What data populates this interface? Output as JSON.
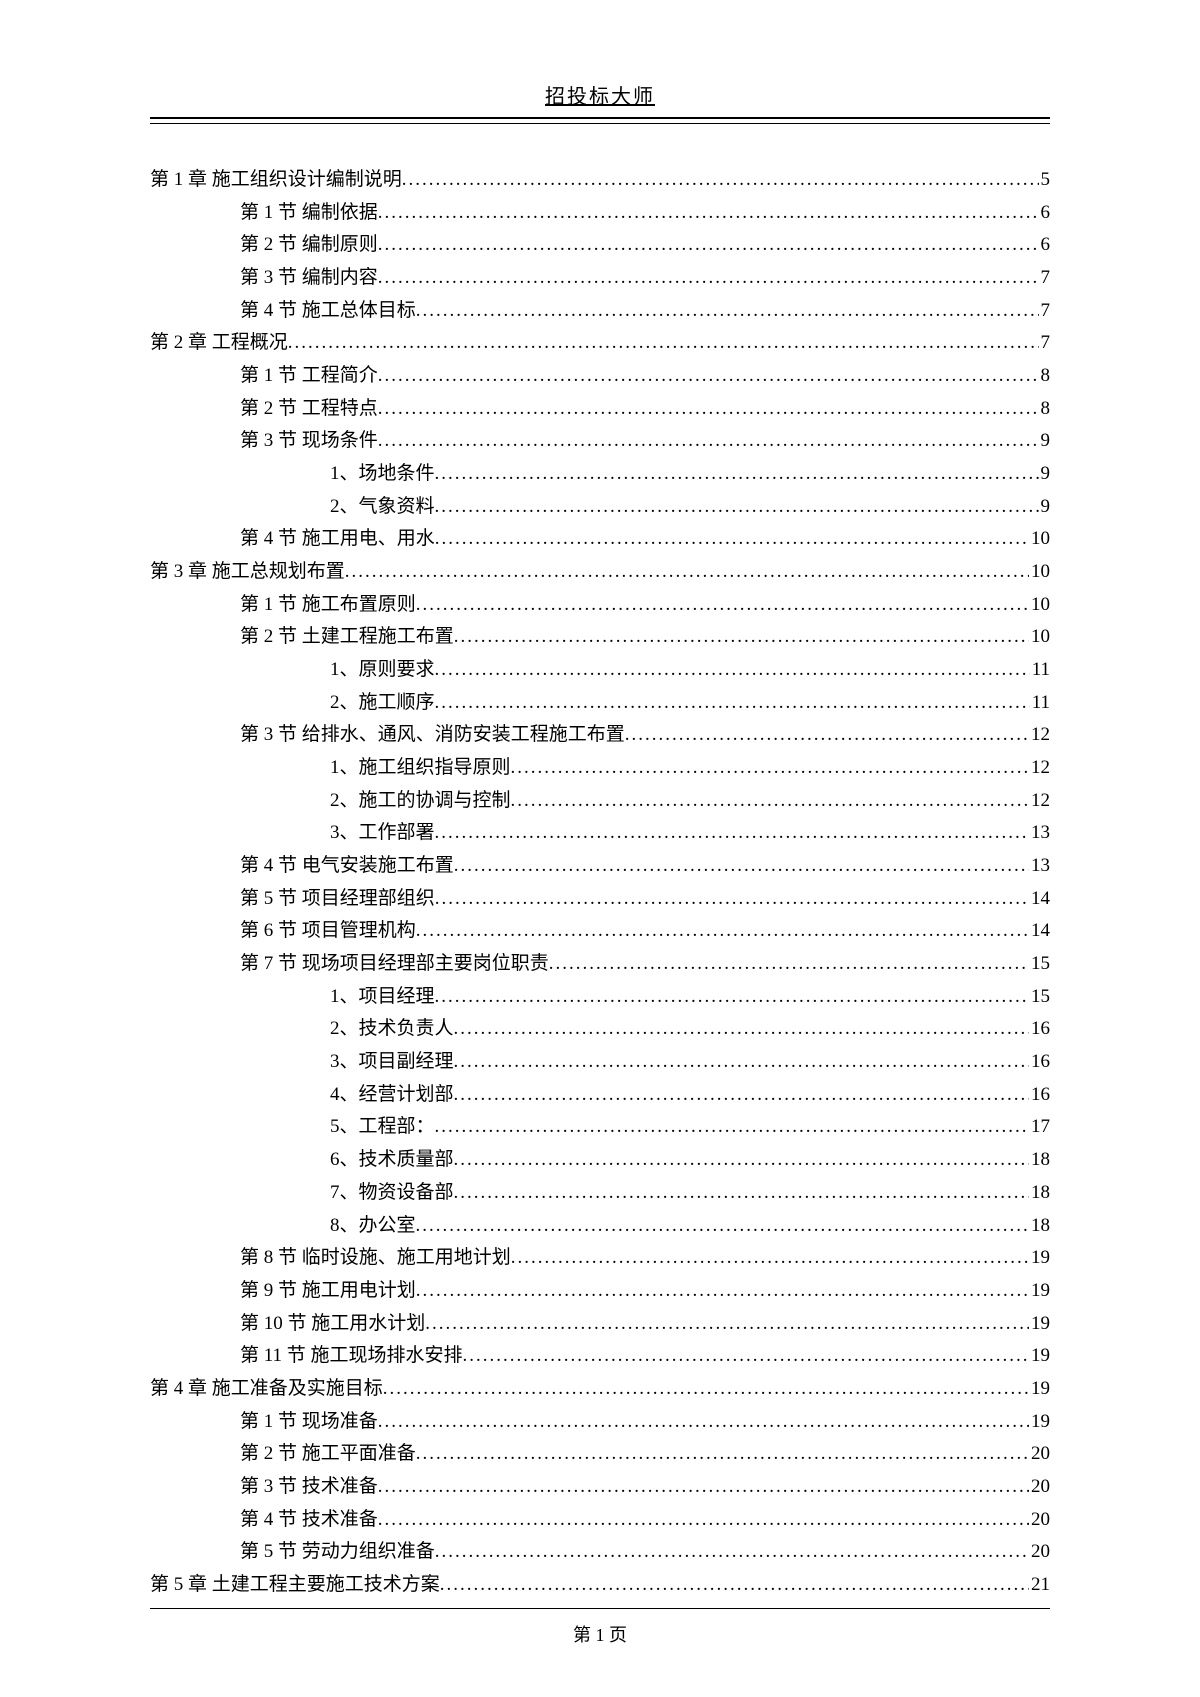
{
  "header": {
    "title": "招投标大师"
  },
  "footer": {
    "label": "第 1 页"
  },
  "toc": [
    {
      "level": 0,
      "label": "第 1 章 施工组织设计编制说明",
      "page": "5"
    },
    {
      "level": 1,
      "label": "第 1 节 编制依据",
      "page": "6"
    },
    {
      "level": 1,
      "label": "第 2 节 编制原则",
      "page": "6"
    },
    {
      "level": 1,
      "label": "第 3 节 编制内容",
      "page": "7"
    },
    {
      "level": 1,
      "label": "第 4 节 施工总体目标",
      "page": "7"
    },
    {
      "level": 0,
      "label": "第 2 章 工程概况",
      "page": "7"
    },
    {
      "level": 1,
      "label": "第 1 节 工程简介",
      "page": "8"
    },
    {
      "level": 1,
      "label": "第 2 节 工程特点",
      "page": "8"
    },
    {
      "level": 1,
      "label": "第 3 节 现场条件",
      "page": "9"
    },
    {
      "level": 2,
      "label": "1、场地条件",
      "page": "9"
    },
    {
      "level": 2,
      "label": "2、气象资料",
      "page": "9"
    },
    {
      "level": 1,
      "label": "第 4 节 施工用电、用水",
      "page": "10"
    },
    {
      "level": 0,
      "label": "第 3 章 施工总规划布置",
      "page": "10"
    },
    {
      "level": 1,
      "label": "第 1 节 施工布置原则",
      "page": "10"
    },
    {
      "level": 1,
      "label": "第 2 节 土建工程施工布置",
      "page": "10"
    },
    {
      "level": 2,
      "label": "1、原则要求",
      "page": "11"
    },
    {
      "level": 2,
      "label": "2、施工顺序",
      "page": "11"
    },
    {
      "level": 1,
      "label": "第 3 节 给排水、通风、消防安装工程施工布置",
      "page": "12"
    },
    {
      "level": 2,
      "label": "1、施工组织指导原则",
      "page": "12"
    },
    {
      "level": 2,
      "label": "2、施工的协调与控制",
      "page": "12"
    },
    {
      "level": 2,
      "label": "3、工作部署",
      "page": "13"
    },
    {
      "level": 1,
      "label": "第 4 节 电气安装施工布置",
      "page": "13"
    },
    {
      "level": 1,
      "label": "第 5 节 项目经理部组织",
      "page": "14"
    },
    {
      "level": 1,
      "label": "第 6 节 项目管理机构",
      "page": "14"
    },
    {
      "level": 1,
      "label": "第 7 节 现场项目经理部主要岗位职责",
      "page": "15"
    },
    {
      "level": 2,
      "label": "1、项目经理",
      "page": "15"
    },
    {
      "level": 2,
      "label": "2、技术负责人",
      "page": "16"
    },
    {
      "level": 2,
      "label": "3、项目副经理",
      "page": "16"
    },
    {
      "level": 2,
      "label": "4、经营计划部",
      "page": "16"
    },
    {
      "level": 2,
      "label": "5、工程部：",
      "page": "17"
    },
    {
      "level": 2,
      "label": "6、技术质量部",
      "page": "18"
    },
    {
      "level": 2,
      "label": "7、物资设备部",
      "page": "18"
    },
    {
      "level": 2,
      "label": "8、办公室",
      "page": "18"
    },
    {
      "level": 1,
      "label": "第 8 节 临时设施、施工用地计划",
      "page": "19"
    },
    {
      "level": 1,
      "label": "第 9 节 施工用电计划",
      "page": "19"
    },
    {
      "level": 1,
      "label": "第 10 节 施工用水计划",
      "page": "19"
    },
    {
      "level": 1,
      "label": "第 11 节 施工现场排水安排",
      "page": "19"
    },
    {
      "level": 0,
      "label": "第 4 章 施工准备及实施目标",
      "page": "19"
    },
    {
      "level": 1,
      "label": "第 1 节 现场准备",
      "page": "19"
    },
    {
      "level": 1,
      "label": "第 2 节 施工平面准备",
      "page": "20"
    },
    {
      "level": 1,
      "label": "第 3 节 技术准备",
      "page": "20"
    },
    {
      "level": 1,
      "label": "第 4 节 技术准备",
      "page": "20"
    },
    {
      "level": 1,
      "label": "第 5 节 劳动力组织准备",
      "page": "20"
    },
    {
      "level": 0,
      "label": "第 5 章 土建工程主要施工技术方案",
      "page": "21"
    }
  ]
}
